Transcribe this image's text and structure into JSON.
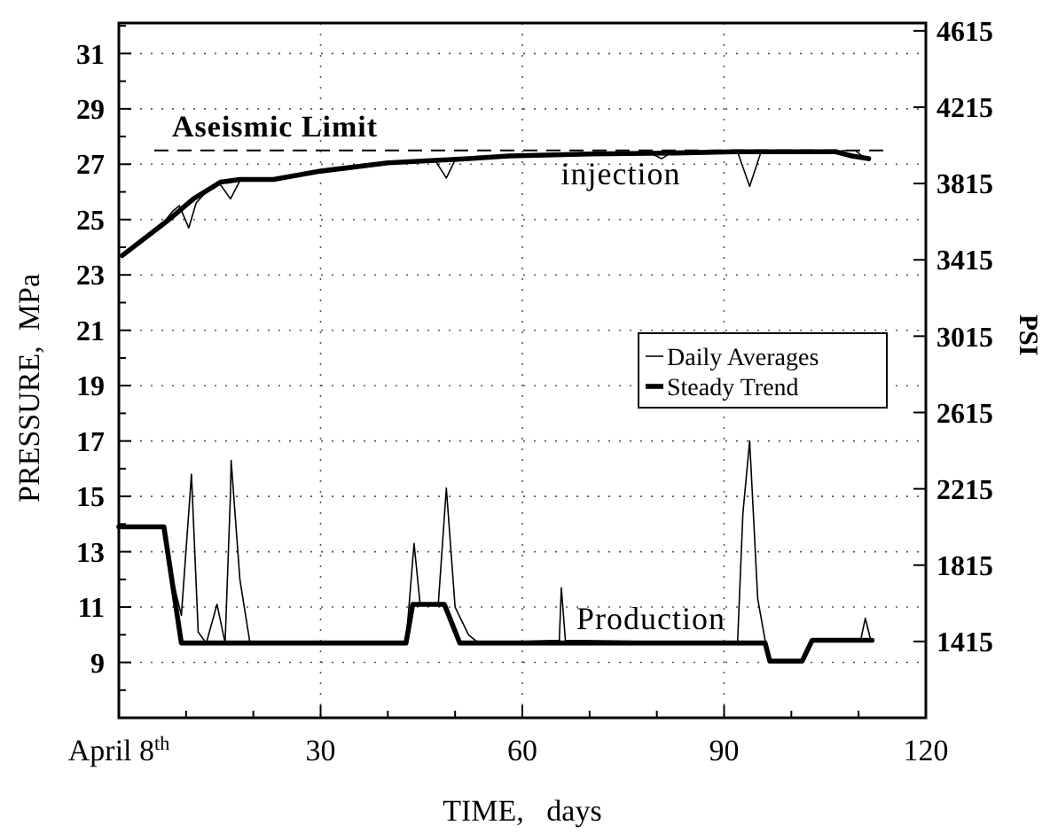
{
  "chart_data": {
    "type": "line",
    "xlabel": "TIME,   days",
    "ylabel": "PRESSURE,  MPa",
    "y2label": "PSI",
    "xlim": [
      0,
      120
    ],
    "xticks": [
      {
        "value": 0,
        "label": "April 8$^{th}$"
      },
      {
        "value": 10,
        "label": null
      },
      {
        "value": 20,
        "label": null
      },
      30,
      {
        "value": 40,
        "label": null
      },
      {
        "value": 50,
        "label": null
      },
      60,
      {
        "value": 70,
        "label": null
      },
      {
        "value": 80,
        "label": null
      },
      90,
      {
        "value": 100,
        "label": null
      },
      {
        "value": 110,
        "label": null
      },
      120
    ],
    "ylim": [
      7,
      32.1
    ],
    "yticks": [
      {
        "value": 8,
        "label": null
      },
      9,
      {
        "value": 10,
        "label": null
      },
      11,
      {
        "value": 12,
        "label": null
      },
      13,
      {
        "value": 14,
        "label": null
      },
      15,
      {
        "value": 16,
        "label": null
      },
      17,
      {
        "value": 18,
        "label": null
      },
      19,
      {
        "value": 20,
        "label": null
      },
      21,
      {
        "value": 22,
        "label": null
      },
      23,
      {
        "value": 24,
        "label": null
      },
      25,
      {
        "value": 26,
        "label": null
      },
      27,
      {
        "value": 28,
        "label": null
      },
      29,
      {
        "value": 30,
        "label": null
      },
      31,
      {
        "value": 32,
        "label": null
      }
    ],
    "y2lim": [
      1015,
      4656
    ],
    "y2ticks": [
      1415,
      1815,
      2215,
      2615,
      3015,
      3415,
      3815,
      4215,
      4615
    ],
    "grid": true,
    "legend": "right",
    "line_style": "solid",
    "marker": "none",
    "ref_lines": [
      {
        "axis": "y",
        "value": 27.5,
        "label": "Aseismic Limit",
        "line_style": "dashed",
        "color": "#000000"
      }
    ],
    "annotations": [
      "injection",
      "Production"
    ],
    "series": [
      {
        "name": "Daily Averages",
        "color": "#000000",
        "x": [
          0.5,
          3,
          6,
          8,
          9,
          10.4,
          11.5,
          13,
          15,
          16.6,
          18,
          23,
          30,
          40,
          47,
          48.7,
          50,
          58,
          70,
          79,
          80.7,
          82,
          92,
          93.8,
          95.5,
          106.6,
          108,
          109.5,
          111
        ],
        "values": [
          23.7,
          24.2,
          24.7,
          25.3,
          25.5,
          24.7,
          25.6,
          26,
          26.3,
          25.75,
          26.4,
          26.45,
          26.75,
          27.05,
          27.15,
          26.5,
          27.15,
          27.3,
          27.37,
          27.4,
          27.2,
          27.4,
          27.45,
          26.2,
          27.45,
          27.45,
          27.5,
          27.5,
          27.2
        ]
      },
      {
        "name": "Steady Trend",
        "color": "#000000",
        "x": [
          0.5,
          7.2,
          11.1,
          15.1,
          18,
          23,
          30,
          40,
          52,
          58,
          70,
          81.7,
          91.6,
          106.6,
          109,
          111.5
        ],
        "values": [
          23.7,
          24.95,
          25.75,
          26.35,
          26.45,
          26.45,
          26.75,
          27.05,
          27.2,
          27.3,
          27.37,
          27.4,
          27.45,
          27.45,
          27.3,
          27.2
        ]
      },
      {
        "color": "#000000",
        "x": [
          0,
          6.7,
          8,
          9.3,
          10.8,
          11.8,
          13,
          14.6,
          15.8,
          16.6,
          16.7,
          18,
          19.5,
          42.7,
          43.9,
          44.8,
          47.5,
          48.7,
          50,
          52,
          53.5,
          65.5,
          65.8,
          66.4,
          92,
          92.8,
          93.8,
          95,
          96.1,
          96.8,
          101.6,
          103.1,
          110.3,
          111,
          111.8
        ],
        "values": [
          13.9,
          13.9,
          12,
          10.7,
          15.8,
          10.1,
          9.7,
          11.1,
          9.7,
          15.1,
          16.3,
          12,
          9.7,
          9.7,
          13.3,
          11.1,
          11.1,
          15.3,
          11,
          10,
          9.7,
          9.8,
          11.7,
          9.8,
          9.7,
          14.4,
          17,
          11.3,
          9.8,
          9.05,
          9.05,
          9.8,
          9.8,
          10.6,
          9.8
        ]
      },
      {
        "color": "#000000",
        "x": [
          0,
          6.7,
          9.3,
          42.7,
          43.7,
          48.4,
          50.7,
          96.1,
          96.8,
          101.6,
          103.1,
          112
        ],
        "values": [
          13.9,
          13.9,
          9.7,
          9.7,
          11.1,
          11.1,
          9.7,
          9.7,
          9.05,
          9.05,
          9.8,
          9.8
        ]
      }
    ]
  }
}
